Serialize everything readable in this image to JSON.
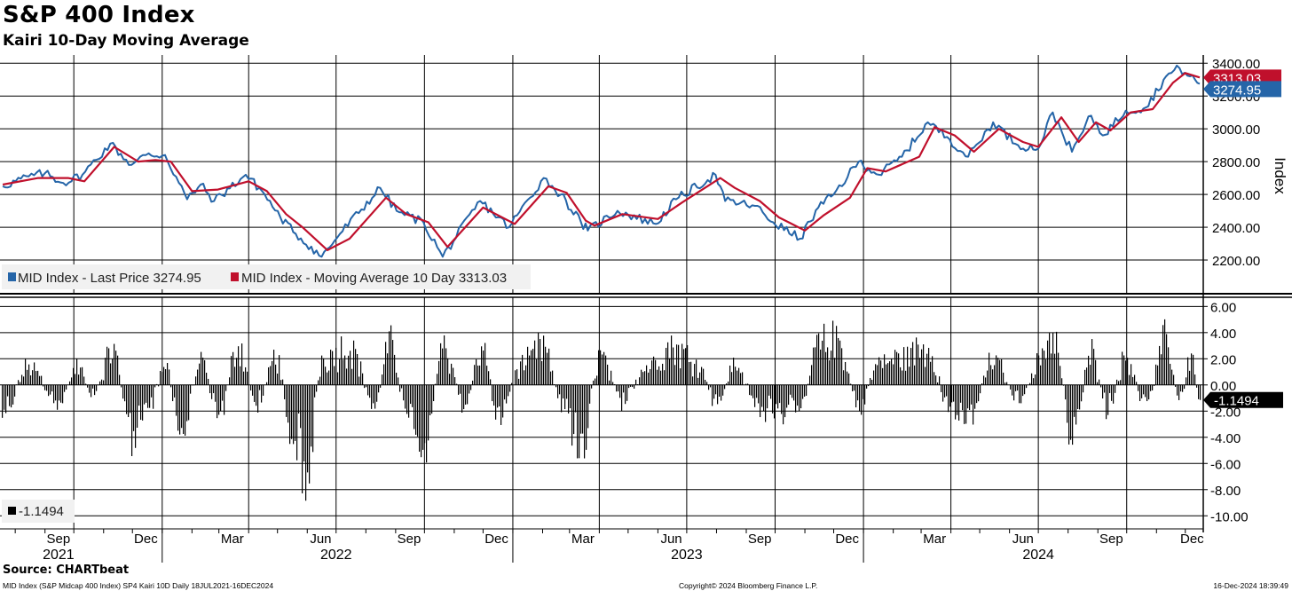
{
  "header": {
    "title": "S&P 400 Index",
    "subtitle": "Kairi 10-Day Moving Average"
  },
  "footer": {
    "source": "Source: CHARTbeat",
    "description": "MID Index (S&P Midcap 400 Index) SP4 Kairi 10D  Daily 18JUL2021-16DEC2024",
    "copyright": "Copyright© 2024 Bloomberg Finance L.P.",
    "timestamp": "16-Dec-2024 18:39:49"
  },
  "colors": {
    "price": "#2565a8",
    "moving_average": "#c0102c",
    "bars": "#000000",
    "grid": "#000000"
  },
  "chart_data": [
    {
      "type": "line",
      "title": "S&P 400 Index",
      "ylabel": "Index",
      "ylim": [
        2000,
        3450
      ],
      "yticks": [
        "3400.00",
        "3200.00",
        "3000.00",
        "2800.00",
        "2600.00",
        "2400.00",
        "2200.00"
      ],
      "grid": true,
      "legend_position": "bottom-left",
      "date_range": [
        "2021-07-18",
        "2024-12-16"
      ],
      "x_month_labels": [
        "Sep",
        "Dec",
        "Mar",
        "Jun",
        "Sep",
        "Dec",
        "Mar",
        "Jun",
        "Sep",
        "Dec",
        "Mar",
        "Jun",
        "Sep",
        "Dec"
      ],
      "x_year_labels": [
        "2021",
        "2022",
        "2023",
        "2024"
      ],
      "series": [
        {
          "name": "MID Index - Last Price",
          "legend": "MID Index - Last Price 3274.95",
          "last_label": "3274.95",
          "x": [
            "2021-07-19",
            "2021-08-15",
            "2021-09-01",
            "2021-09-20",
            "2021-10-10",
            "2021-11-08",
            "2021-11-30",
            "2021-12-15",
            "2022-01-04",
            "2022-01-27",
            "2022-02-10",
            "2022-02-24",
            "2022-03-29",
            "2022-04-15",
            "2022-05-04",
            "2022-05-20",
            "2022-06-16",
            "2022-07-05",
            "2022-08-16",
            "2022-09-02",
            "2022-09-30",
            "2022-10-20",
            "2022-11-28",
            "2022-12-28",
            "2023-02-02",
            "2023-02-20",
            "2023-03-13",
            "2023-03-20",
            "2023-04-20",
            "2023-05-30",
            "2023-06-20",
            "2023-07-31",
            "2023-08-10",
            "2023-09-10",
            "2023-09-29",
            "2023-10-27",
            "2023-11-15",
            "2023-12-01",
            "2023-12-27",
            "2024-01-17",
            "2024-02-10",
            "2024-03-08",
            "2024-03-28",
            "2024-04-19",
            "2024-05-15",
            "2024-06-10",
            "2024-07-01",
            "2024-07-16",
            "2024-08-05",
            "2024-08-25",
            "2024-09-06",
            "2024-09-30",
            "2024-10-21",
            "2024-11-11",
            "2024-11-25",
            "2024-12-06",
            "2024-12-16"
          ],
          "y": [
            2650,
            2710,
            2730,
            2670,
            2720,
            2910,
            2780,
            2840,
            2840,
            2570,
            2660,
            2560,
            2720,
            2620,
            2460,
            2360,
            2220,
            2360,
            2640,
            2500,
            2430,
            2220,
            2560,
            2400,
            2700,
            2600,
            2430,
            2380,
            2500,
            2420,
            2570,
            2720,
            2560,
            2530,
            2430,
            2330,
            2520,
            2600,
            2800,
            2720,
            2830,
            3040,
            2950,
            2830,
            3040,
            2900,
            2880,
            3100,
            2860,
            3080,
            2960,
            3110,
            3130,
            3320,
            3370,
            3320,
            3274.95
          ]
        },
        {
          "name": "MID Index - Moving Average 10 Day",
          "legend": "MID Index - Moving Average 10 Day 3313.03",
          "last_label": "3313.03",
          "x": [
            "2021-07-19",
            "2021-08-25",
            "2021-09-25",
            "2021-10-12",
            "2021-11-12",
            "2021-12-07",
            "2021-12-25",
            "2022-01-10",
            "2022-02-01",
            "2022-02-28",
            "2022-04-01",
            "2022-04-20",
            "2022-05-10",
            "2022-05-27",
            "2022-06-22",
            "2022-07-15",
            "2022-08-22",
            "2022-09-12",
            "2022-10-05",
            "2022-10-25",
            "2022-12-01",
            "2023-01-03",
            "2023-02-07",
            "2023-02-26",
            "2023-03-18",
            "2023-03-27",
            "2023-04-25",
            "2023-06-01",
            "2023-06-26",
            "2023-08-05",
            "2023-08-20",
            "2023-09-15",
            "2023-10-05",
            "2023-11-01",
            "2023-11-20",
            "2023-12-18",
            "2024-01-05",
            "2024-01-24",
            "2024-02-28",
            "2024-03-15",
            "2024-04-05",
            "2024-04-25",
            "2024-05-21",
            "2024-06-15",
            "2024-07-01",
            "2024-07-25",
            "2024-08-12",
            "2024-08-30",
            "2024-09-14",
            "2024-10-05",
            "2024-10-28",
            "2024-11-18",
            "2024-12-01",
            "2024-12-16"
          ],
          "y": [
            2660,
            2700,
            2700,
            2680,
            2890,
            2800,
            2810,
            2800,
            2620,
            2630,
            2680,
            2620,
            2480,
            2400,
            2260,
            2330,
            2580,
            2480,
            2430,
            2280,
            2520,
            2420,
            2650,
            2610,
            2440,
            2410,
            2480,
            2450,
            2550,
            2700,
            2640,
            2560,
            2460,
            2380,
            2470,
            2580,
            2760,
            2740,
            2830,
            3010,
            2960,
            2860,
            3000,
            2920,
            2890,
            3070,
            2920,
            3040,
            2990,
            3100,
            3120,
            3280,
            3340,
            3313.03
          ]
        }
      ]
    },
    {
      "type": "bar",
      "title": "SP4 Kairi 10D",
      "ylim": [
        -11,
        6.7
      ],
      "yticks": [
        "6.00",
        "4.00",
        "2.00",
        "0.00",
        "-2.00",
        "-4.00",
        "-6.00",
        "-8.00",
        "-10.00"
      ],
      "grid": true,
      "legend": "-1.1494",
      "last_label": "-1.1494",
      "x": [
        "2021-07-19",
        "2021-08-15",
        "2021-09-15",
        "2021-10-05",
        "2021-10-20",
        "2021-11-10",
        "2021-11-30",
        "2021-12-20",
        "2022-01-04",
        "2022-01-20",
        "2022-02-10",
        "2022-03-01",
        "2022-03-20",
        "2022-04-10",
        "2022-04-29",
        "2022-05-15",
        "2022-06-01",
        "2022-06-16",
        "2022-07-15",
        "2022-08-10",
        "2022-08-25",
        "2022-09-10",
        "2022-09-30",
        "2022-10-20",
        "2022-11-10",
        "2022-11-30",
        "2022-12-16",
        "2023-01-10",
        "2023-02-01",
        "2023-02-20",
        "2023-03-13",
        "2023-04-01",
        "2023-04-25",
        "2023-05-20",
        "2023-06-15",
        "2023-07-10",
        "2023-07-31",
        "2023-08-20",
        "2023-09-15",
        "2023-10-05",
        "2023-10-27",
        "2023-11-14",
        "2023-12-05",
        "2023-12-27",
        "2024-01-17",
        "2024-02-10",
        "2024-03-08",
        "2024-03-28",
        "2024-04-19",
        "2024-05-15",
        "2024-06-10",
        "2024-07-16",
        "2024-08-05",
        "2024-08-25",
        "2024-09-10",
        "2024-10-01",
        "2024-10-20",
        "2024-11-11",
        "2024-11-25",
        "2024-12-06",
        "2024-12-16"
      ],
      "y": [
        -2.8,
        1.9,
        -1.8,
        1.9,
        -1.5,
        3.7,
        -5.2,
        -1.8,
        2.1,
        -4.8,
        2.4,
        -3.5,
        4.2,
        -2.2,
        3.1,
        -4.5,
        -8.6,
        2.8,
        4.0,
        -2.3,
        4.2,
        -1.8,
        -6.0,
        4.3,
        -2.0,
        3.5,
        -3.1,
        2.0,
        3.9,
        -1.9,
        -6.0,
        3.1,
        -1.6,
        1.9,
        4.0,
        2.6,
        -1.8,
        2.1,
        -2.4,
        -3.2,
        -2.0,
        4.0,
        4.6,
        -2.4,
        2.3,
        2.8,
        4.0,
        -2.0,
        -3.1,
        2.6,
        -1.5,
        5.2,
        -5.1,
        3.2,
        -2.5,
        3.0,
        -2.0,
        4.6,
        -1.5,
        2.9,
        -1.1494
      ]
    }
  ]
}
